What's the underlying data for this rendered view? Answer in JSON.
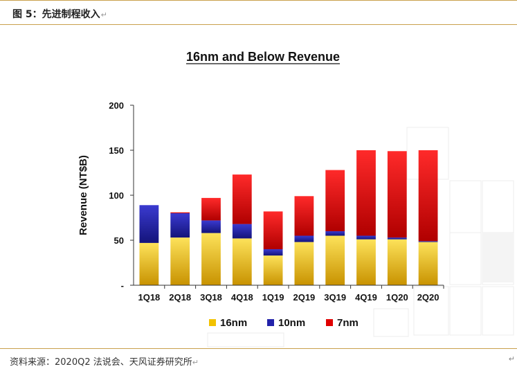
{
  "figure": {
    "caption": "图 5：先进制程收入",
    "source": "资料来源：2020Q2 法说会、天风证券研究所"
  },
  "chart_data": {
    "type": "bar",
    "stacked": true,
    "title": "16nm and Below Revenue",
    "xlabel": "",
    "ylabel": "Revenue (NT$B)",
    "ylim": [
      0,
      200
    ],
    "yticks": [
      0,
      50,
      100,
      150,
      200
    ],
    "ytick_labels": [
      "-",
      "50",
      "100",
      "150",
      "200"
    ],
    "grid": false,
    "legend_position": "bottom",
    "categories": [
      "1Q18",
      "2Q18",
      "3Q18",
      "4Q18",
      "1Q19",
      "2Q19",
      "3Q19",
      "4Q19",
      "1Q20",
      "2Q20"
    ],
    "series": [
      {
        "name": "16nm",
        "color": "#f2c200",
        "values": [
          47,
          53,
          58,
          52,
          33,
          48,
          55,
          51,
          51,
          48
        ]
      },
      {
        "name": "10nm",
        "color": "#2222aa",
        "values": [
          42,
          27,
          14,
          16,
          7,
          7,
          5,
          4,
          2,
          1
        ]
      },
      {
        "name": "7nm",
        "color": "#e00000",
        "values": [
          0,
          1,
          25,
          55,
          42,
          44,
          68,
          95,
          96,
          101
        ]
      }
    ]
  }
}
